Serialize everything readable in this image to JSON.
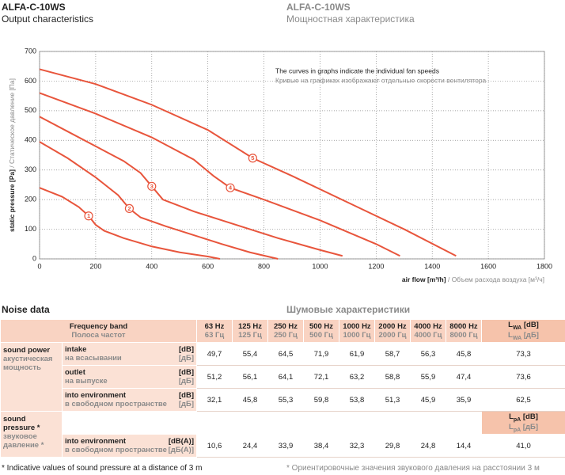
{
  "header": {
    "title_en": "ALFA-C-10WS",
    "subtitle_en": "Output characteristics",
    "title_ru": "ALFA-C-10WS",
    "subtitle_ru": "Мощностная характеристика"
  },
  "chart_data": {
    "type": "line",
    "xlabel": "air flow [m³/h]",
    "xlabel_ru": "/ Объем расхода воздуха [м³/ч]",
    "ylabel": "static pressure [Pa]",
    "ylabel_ru": "/ Статическое давление [Па]",
    "annotation": "The curves in graphs indicate the individual fan speeds",
    "annotation_ru": "Кривые на графиках изображают отдельные скорости вентилятора",
    "xlim": [
      0,
      1800
    ],
    "xticks": [
      0,
      200,
      400,
      600,
      800,
      1000,
      1200,
      1400,
      1600,
      1800
    ],
    "ylim": [
      0,
      700
    ],
    "yticks": [
      0,
      100,
      200,
      300,
      400,
      500,
      600,
      700
    ],
    "grid": true,
    "series": [
      {
        "name": "1",
        "color": "#e8553c",
        "x": [
          0,
          80,
          140,
          175,
          200,
          230,
          300,
          400,
          500,
          600,
          643
        ],
        "values": [
          240,
          210,
          175,
          145,
          115,
          95,
          70,
          42,
          22,
          8,
          0
        ]
      },
      {
        "name": "2",
        "color": "#e8553c",
        "x": [
          0,
          100,
          200,
          280,
          320,
          360,
          450,
          550,
          650,
          750,
          850
        ],
        "values": [
          395,
          340,
          275,
          215,
          170,
          140,
          110,
          80,
          50,
          22,
          0
        ]
      },
      {
        "name": "3",
        "color": "#e8553c",
        "x": [
          0,
          100,
          200,
          300,
          360,
          400,
          440,
          550,
          700,
          850,
          1000,
          1080
        ],
        "values": [
          480,
          430,
          380,
          330,
          290,
          245,
          200,
          160,
          115,
          70,
          30,
          10
        ]
      },
      {
        "name": "4",
        "color": "#e8553c",
        "x": [
          0,
          200,
          400,
          550,
          620,
          680,
          800,
          1000,
          1200,
          1285
        ],
        "values": [
          560,
          490,
          410,
          335,
          280,
          240,
          200,
          130,
          50,
          10
        ]
      },
      {
        "name": "5",
        "color": "#e8553c",
        "x": [
          0,
          200,
          400,
          600,
          760,
          900,
          1100,
          1300,
          1485
        ],
        "values": [
          640,
          590,
          520,
          435,
          340,
          280,
          190,
          100,
          10
        ]
      }
    ]
  },
  "noise": {
    "title_en": "Noise data",
    "title_ru": "Шумовые характеристики",
    "band_en": "Frequency band",
    "band_ru": "Полоса частот",
    "frequencies": [
      {
        "en": "63 Hz",
        "ru": "63 Гц"
      },
      {
        "en": "125 Hz",
        "ru": "125 Гц"
      },
      {
        "en": "250 Hz",
        "ru": "250 Гц"
      },
      {
        "en": "500 Hz",
        "ru": "500 Гц"
      },
      {
        "en": "1000 Hz",
        "ru": "1000 Гц"
      },
      {
        "en": "2000 Hz",
        "ru": "2000 Гц"
      },
      {
        "en": "4000 Hz",
        "ru": "4000 Гц"
      },
      {
        "en": "8000 Hz",
        "ru": "8000 Гц"
      }
    ],
    "total_power": {
      "symbol": "L",
      "sub": "WA",
      "unit_en": "[dB]",
      "unit_ru": "[дБ]"
    },
    "power_group": {
      "en": "sound power",
      "ru": "акустическая мощность"
    },
    "power_rows": [
      {
        "en": "intake",
        "ru": "на всасывании",
        "unit_en": "[dB]",
        "unit_ru": "[дБ]",
        "values": [
          "49,7",
          "55,4",
          "64,5",
          "71,9",
          "61,9",
          "58,7",
          "56,3",
          "45,8"
        ],
        "total": "73,3"
      },
      {
        "en": "outlet",
        "ru": "на выпуске",
        "unit_en": "[dB]",
        "unit_ru": "[дБ]",
        "values": [
          "51,2",
          "56,1",
          "64,1",
          "72,1",
          "63,2",
          "58,8",
          "55,9",
          "47,4"
        ],
        "total": "73,6"
      },
      {
        "en": "into environment",
        "ru": "в свободном пространстве",
        "unit_en": "[dB]",
        "unit_ru": "[дБ]",
        "values": [
          "32,1",
          "45,8",
          "55,3",
          "59,8",
          "53,8",
          "51,3",
          "45,9",
          "35,9"
        ],
        "total": "62,5"
      }
    ],
    "pressure_group": {
      "en": "sound pressure *",
      "ru": "звуковое давление *"
    },
    "total_pressure": {
      "symbol": "L",
      "sub": "pA",
      "unit_en": "[dB]",
      "unit_ru": "[дБ]"
    },
    "pressure_rows": [
      {
        "en": "into environment",
        "ru": "в свободном пространстве",
        "unit_en": "[dB(A)]",
        "unit_ru": "[дБ(A)]",
        "values": [
          "10,6",
          "24,4",
          "33,9",
          "38,4",
          "32,3",
          "29,8",
          "24,8",
          "14,4"
        ],
        "total": "41,0"
      }
    ],
    "footnote_en": "* Indicative values of sound pressure at a distance of 3 m",
    "footnote_ru": "* Ориентировочные значения звукового давления на расстоянии 3 м"
  }
}
